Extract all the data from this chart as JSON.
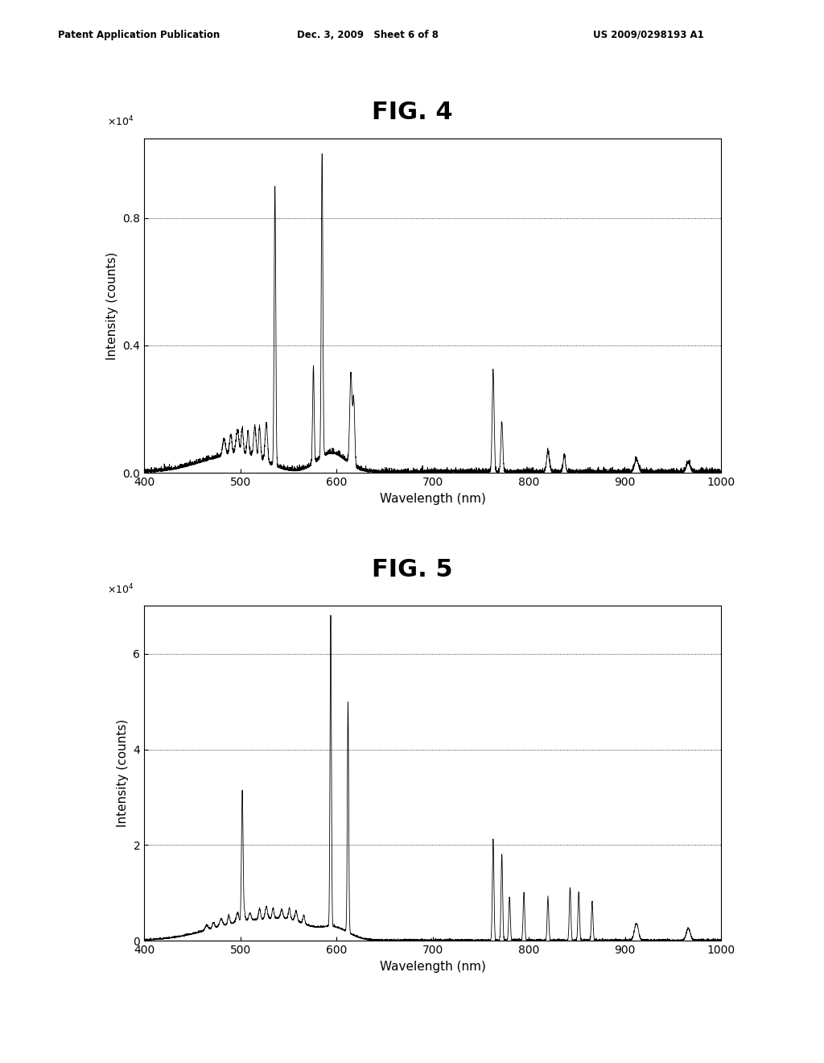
{
  "header_left": "Patent Application Publication",
  "header_center": "Dec. 3, 2009   Sheet 6 of 8",
  "header_right": "US 2009/0298193 A1",
  "fig4_title": "FIG. 4",
  "fig5_title": "FIG. 5",
  "xlabel": "Wavelength (nm)",
  "ylabel": "Intensity (counts)",
  "fig4_xlim": [
    400,
    1000
  ],
  "fig4_ylim": [
    0.0,
    1.05
  ],
  "fig4_yticks": [
    0.0,
    0.4,
    0.8
  ],
  "fig4_yticklabels": [
    "0.0",
    "0.4",
    "0.8"
  ],
  "fig4_xticks": [
    400,
    500,
    600,
    700,
    800,
    900,
    1000
  ],
  "fig4_hlines": [
    0.4,
    0.8
  ],
  "fig5_xlim": [
    400,
    1000
  ],
  "fig5_ylim": [
    0,
    7.0
  ],
  "fig5_yticks": [
    0,
    2,
    4,
    6
  ],
  "fig5_yticklabels": [
    "0",
    "2",
    "4",
    "6"
  ],
  "fig5_xticks": [
    400,
    500,
    600,
    700,
    800,
    900,
    1000
  ],
  "fig5_hlines": [
    2,
    4,
    6
  ],
  "background_color": "#ffffff",
  "line_color": "#000000",
  "grid_color": "#000000"
}
